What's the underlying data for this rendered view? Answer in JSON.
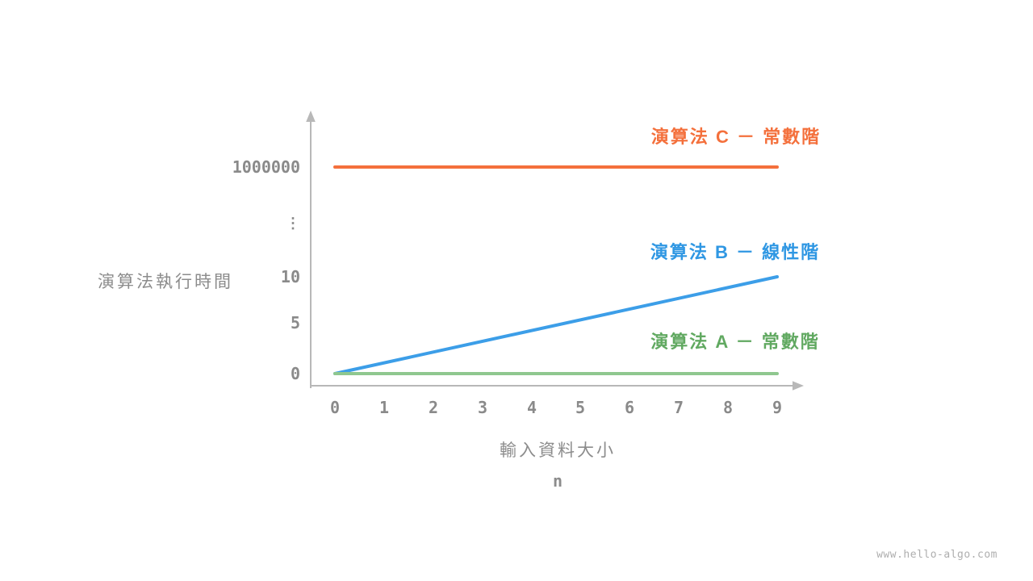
{
  "watermark": "www.hello-algo.com",
  "chart_data": {
    "type": "line",
    "xlabel": "輸入資料大小",
    "xlabel_variable": "n",
    "ylabel": "演算法執行時間",
    "x_ticks": [
      "0",
      "1",
      "2",
      "3",
      "4",
      "5",
      "6",
      "7",
      "8",
      "9"
    ],
    "y_ticks": [
      "1000000",
      "⋮",
      "10",
      "5",
      "0"
    ],
    "x_range": [
      0,
      9
    ],
    "axis_color": "#b8b8b8",
    "series": [
      {
        "name": "algorithm-C",
        "label": "演算法 C － 常數階",
        "line_color": "#f4703c",
        "label_color": "#f4703c",
        "points": [
          [
            0,
            1000000
          ],
          [
            9,
            1000000
          ]
        ]
      },
      {
        "name": "algorithm-B",
        "label": "演算法 B － 線性階",
        "line_color": "#3c9ee8",
        "label_color": "#2f97e3",
        "points": [
          [
            0,
            0
          ],
          [
            9,
            10
          ]
        ]
      },
      {
        "name": "algorithm-A",
        "label": "演算法 A － 常數階",
        "line_color": "#8fc78f",
        "label_color": "#61a961",
        "points": [
          [
            0,
            0
          ],
          [
            9,
            0
          ]
        ]
      }
    ]
  }
}
